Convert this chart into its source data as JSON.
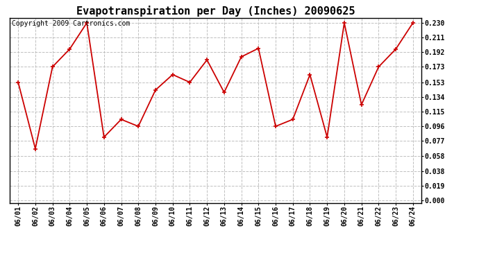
{
  "title": "Evapotranspiration per Day (Inches) 20090625",
  "copyright_text": "Copyright 2009 Cartronics.com",
  "dates": [
    "06/01",
    "06/02",
    "06/03",
    "06/04",
    "06/05",
    "06/06",
    "06/07",
    "06/08",
    "06/09",
    "06/10",
    "06/11",
    "06/12",
    "06/13",
    "06/14",
    "06/15",
    "06/16",
    "06/17",
    "06/18",
    "06/19",
    "06/20",
    "06/21",
    "06/22",
    "06/23",
    "06/24"
  ],
  "values": [
    0.153,
    0.067,
    0.173,
    0.196,
    0.23,
    0.082,
    0.105,
    0.096,
    0.143,
    0.163,
    0.153,
    0.182,
    0.14,
    0.186,
    0.197,
    0.096,
    0.105,
    0.163,
    0.082,
    0.23,
    0.124,
    0.173,
    0.196,
    0.23
  ],
  "line_color": "#cc0000",
  "marker": "+",
  "marker_size": 5,
  "marker_linewidth": 1.2,
  "line_width": 1.3,
  "background_color": "#ffffff",
  "plot_bg_color": "#ffffff",
  "grid_color": "#c0c0c0",
  "yticks": [
    0.0,
    0.019,
    0.038,
    0.058,
    0.077,
    0.096,
    0.115,
    0.134,
    0.153,
    0.173,
    0.192,
    0.211,
    0.23
  ],
  "ylim_min": -0.003,
  "ylim_max": 0.236,
  "title_fontsize": 11,
  "tick_fontsize": 7,
  "copyright_fontsize": 7
}
